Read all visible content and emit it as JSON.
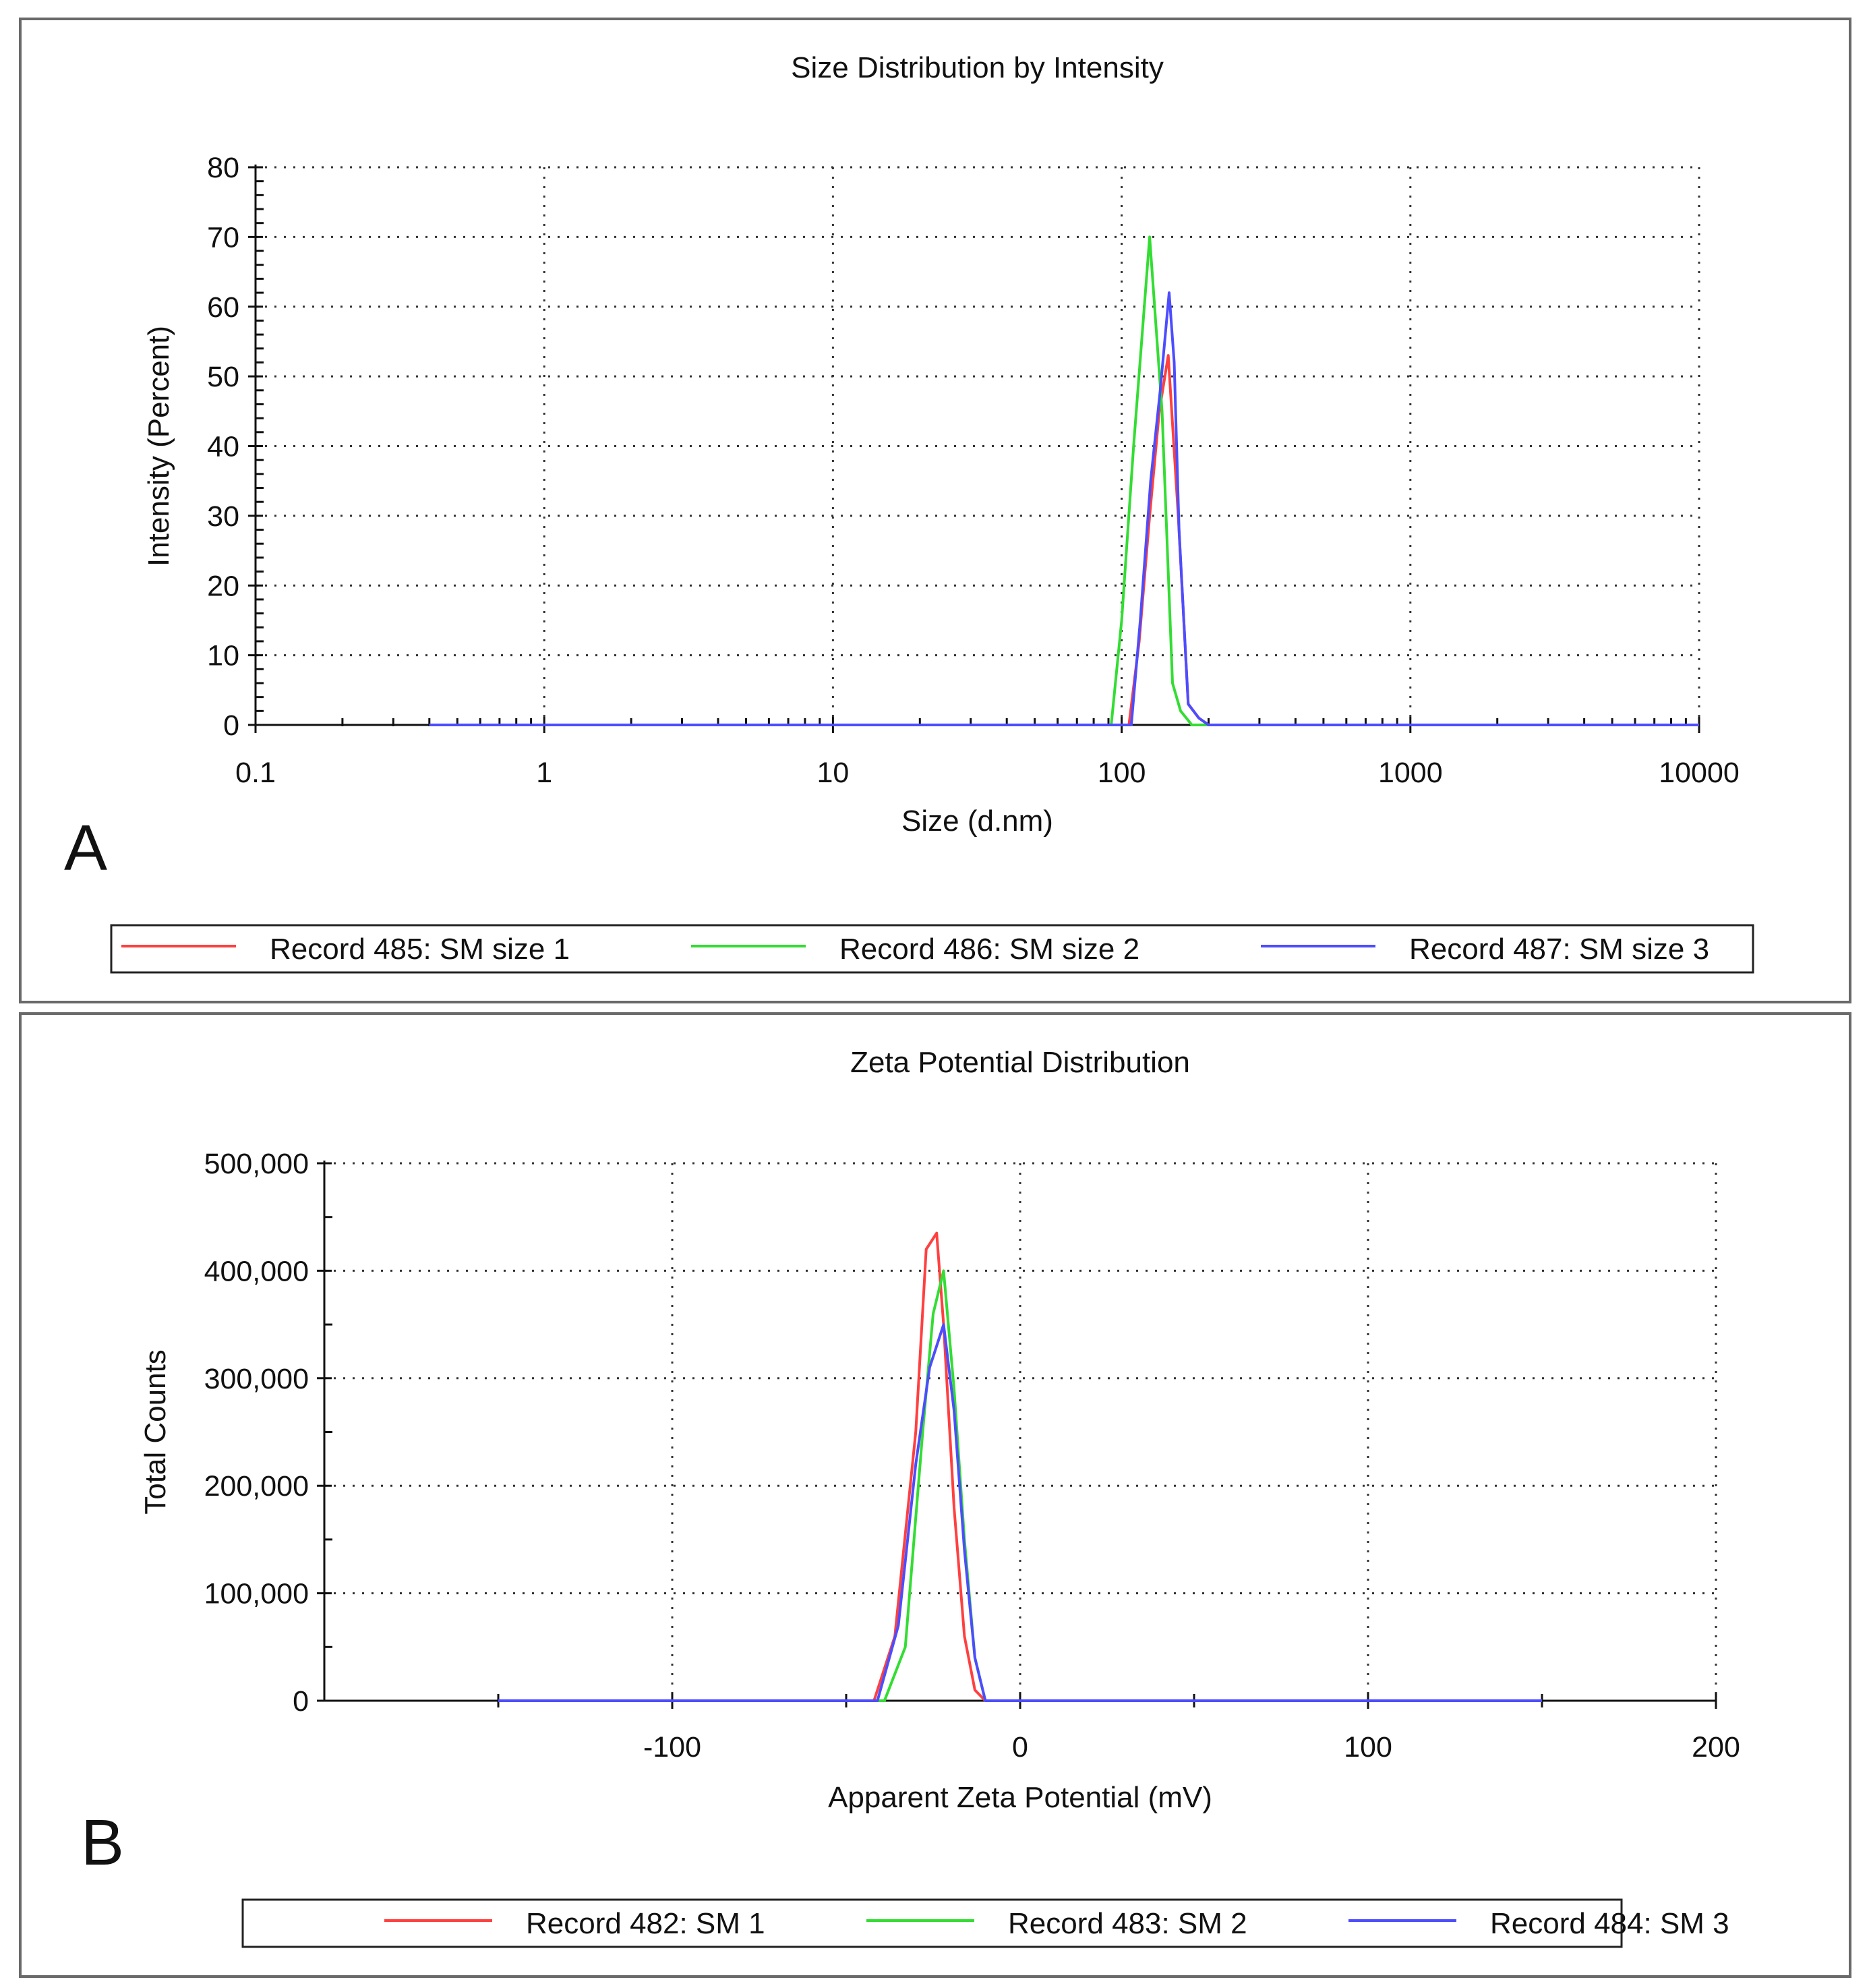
{
  "chart_data": [
    {
      "type": "line",
      "panel_label": "A",
      "title": "Size Distribution by Intensity",
      "xlabel": "Size (d.nm)",
      "ylabel": "Intensity (Percent)",
      "x_scale": "log",
      "xlim": [
        0.1,
        10000
      ],
      "ylim": [
        0,
        80
      ],
      "x_ticks": [
        0.1,
        1,
        10,
        100,
        1000,
        10000
      ],
      "x_tick_labels": [
        "0.1",
        "1",
        "10",
        "100",
        "1000",
        "10000"
      ],
      "y_ticks": [
        0,
        10,
        20,
        30,
        40,
        50,
        60,
        70,
        80
      ],
      "y_tick_labels": [
        "0",
        "10",
        "20",
        "30",
        "40",
        "50",
        "60",
        "70",
        "80"
      ],
      "grid": true,
      "legend_position": "bottom",
      "series": [
        {
          "name": "Record 485: SM size 1",
          "color": "#ff4040",
          "x": [
            0.4,
            106,
            115,
            125,
            135,
            145,
            157,
            170,
            185,
            200,
            10000
          ],
          "y": [
            0,
            0,
            12,
            30,
            45,
            53,
            30,
            3,
            1,
            0,
            0
          ]
        },
        {
          "name": "Record 486: SM size 2",
          "color": "#33dd33",
          "x": [
            0.4,
            92,
            100,
            110,
            125,
            138,
            150,
            160,
            175,
            10000
          ],
          "y": [
            0,
            0,
            15,
            40,
            70,
            45,
            6,
            2,
            0,
            0
          ]
        },
        {
          "name": "Record 487: SM size 3",
          "color": "#4d4dff",
          "x": [
            0.4,
            108,
            116,
            126,
            136,
            146,
            152,
            158,
            170,
            185,
            200,
            10000
          ],
          "y": [
            0,
            0,
            15,
            35,
            48,
            62,
            52,
            28,
            3,
            1,
            0,
            0
          ]
        }
      ]
    },
    {
      "type": "line",
      "panel_label": "B",
      "title": "Zeta Potential Distribution",
      "xlabel": "Apparent Zeta Potential (mV)",
      "ylabel": "Total Counts",
      "x_scale": "linear",
      "xlim": [
        -200,
        200
      ],
      "ylim": [
        0,
        500000
      ],
      "x_ticks": [
        -100,
        0,
        100,
        200
      ],
      "x_tick_labels": [
        "-100",
        "0",
        "100",
        "200"
      ],
      "y_ticks": [
        0,
        100000,
        200000,
        300000,
        400000,
        500000
      ],
      "y_tick_labels": [
        "0",
        "100,000",
        "200,000",
        "300,000",
        "400,000",
        "500,000"
      ],
      "grid": true,
      "legend_position": "bottom",
      "series": [
        {
          "name": "Record 482: SM 1",
          "color": "#ff4040",
          "x": [
            -150,
            -42,
            -36,
            -30,
            -27,
            -24,
            -22,
            -19,
            -16,
            -13,
            -10,
            150
          ],
          "y": [
            0,
            0,
            60000,
            250000,
            420000,
            435000,
            350000,
            180000,
            60000,
            10000,
            0,
            0
          ]
        },
        {
          "name": "Record 483: SM 2",
          "color": "#33dd33",
          "x": [
            -150,
            -39,
            -33,
            -28,
            -25,
            -22,
            -19,
            -16,
            -13,
            -10,
            150
          ],
          "y": [
            0,
            0,
            50000,
            250000,
            360000,
            400000,
            290000,
            150000,
            40000,
            0,
            0
          ]
        },
        {
          "name": "Record 484: SM 3",
          "color": "#4d4dff",
          "x": [
            -150,
            -41,
            -35,
            -30,
            -26,
            -22,
            -19,
            -16,
            -13,
            -10,
            150
          ],
          "y": [
            0,
            0,
            70000,
            220000,
            310000,
            350000,
            270000,
            140000,
            40000,
            0,
            0
          ]
        }
      ]
    }
  ]
}
